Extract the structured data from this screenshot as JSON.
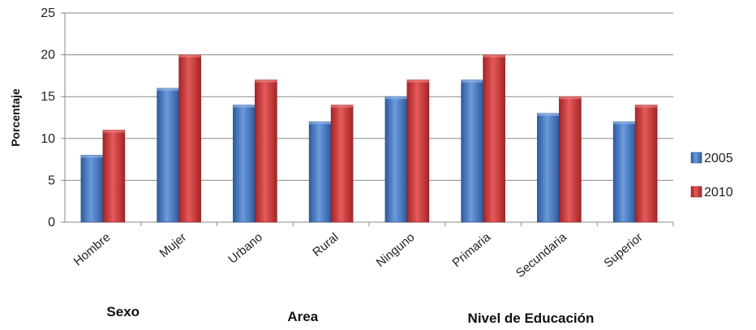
{
  "chart_data": {
    "type": "bar",
    "categories": [
      "Hombre",
      "Mujer",
      "Urbano",
      "Rural",
      "Ninguno",
      "Primaria",
      "Secundaria",
      "Superior"
    ],
    "series": [
      {
        "name": "2005",
        "values": [
          8,
          16,
          14,
          12,
          15,
          17,
          13,
          12
        ],
        "color": "#4A7EC7"
      },
      {
        "name": "2010",
        "values": [
          11,
          20,
          17,
          14,
          17,
          20,
          15,
          14
        ],
        "color": "#C9393A"
      }
    ],
    "ylabel": "Porcentaje",
    "ylim": [
      0,
      25
    ],
    "yticks": [
      0,
      5,
      10,
      15,
      20,
      25
    ],
    "grid": true,
    "legend": "right",
    "groups": [
      {
        "label": "Sexo",
        "categories": [
          "Hombre",
          "Mujer"
        ]
      },
      {
        "label": "Area",
        "categories": [
          "Urbano",
          "Rural"
        ]
      },
      {
        "label": "Nivel de Educación",
        "categories": [
          "Ninguno",
          "Primaria",
          "Secundaria",
          "Superior"
        ]
      }
    ]
  }
}
